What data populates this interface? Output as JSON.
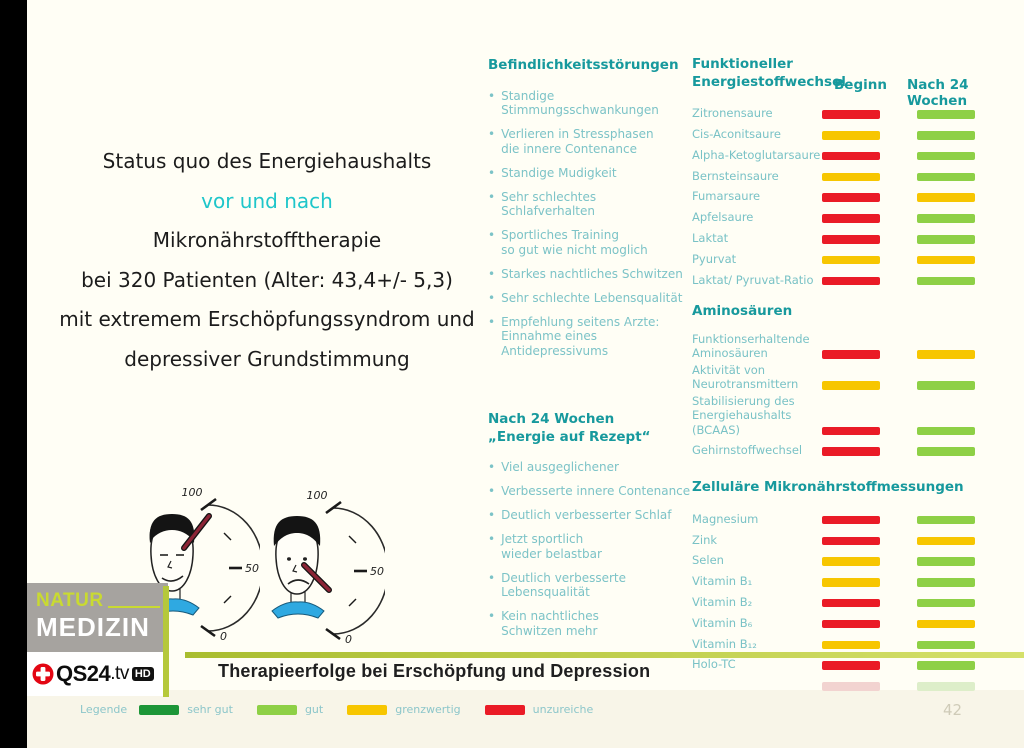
{
  "colors": {
    "red": "#ea1b26",
    "yellow": "#f7c600",
    "green": "#8ed046",
    "dark_green": "#1d9638",
    "faded_red": "#f2d3d0",
    "faded_green": "#ddeec9",
    "teal_heading": "#17999d",
    "teal_text": "#79c2c6",
    "cyan_accent": "#1fc6ca",
    "lime": "#b5c83b",
    "qs24_red": "#e30613"
  },
  "title": {
    "lines": [
      "Status quo des Energiehaushalts",
      "vor und nach",
      "Mikronährstofftherapie",
      "bei 320 Patienten (Alter: 43,4+/- 5,3)",
      "mit extremem Erschöpfungssyndrom und",
      "depressiver Grundstimmung"
    ]
  },
  "gauges": {
    "scale": [
      "100",
      "50",
      "0"
    ],
    "left_mood": "happy",
    "left_needle": "high",
    "right_mood": "sad",
    "right_needle": "low"
  },
  "symptoms": {
    "heading": "Befindlichkeitsstörungen",
    "items": [
      "Standige\nStimmungsschwankungen",
      "Verlieren in Stressphasen\ndie innere Contenance",
      "Standige Mudigkeit",
      "Sehr schlechtes\nSchlafverhalten",
      "Sportliches Training\nso gut wie nicht moglich",
      "Starkes nachtliches Schwitzen",
      "Sehr schlechte Lebensqualität",
      "Empfehlung seitens Arzte:\nEinnahme eines\nAntidepressivums"
    ]
  },
  "after": {
    "heading": "Nach 24 Wochen\n„Energie auf Rezept“",
    "items": [
      "Viel ausgeglichener",
      "Verbesserte innere Contenance",
      "Deutlich verbesserter Schlaf",
      "Jetzt sportlich\nwieder belastbar",
      "Deutlich verbesserte\nLebensqualität",
      "Kein nachtliches\nSchwitzen mehr"
    ]
  },
  "results": {
    "col_beginn": "Beginn",
    "col_nach": "Nach 24 Wochen",
    "sections": [
      {
        "heading": "Funktioneller\nEnergiestoffwechsel",
        "rows": [
          {
            "label": "Zitronensaure",
            "beginn": "red",
            "nach": "green"
          },
          {
            "label": "Cis-Aconitsaure",
            "beginn": "yellow",
            "nach": "green"
          },
          {
            "label": "Alpha-Ketoglutarsaure",
            "beginn": "red",
            "nach": "green"
          },
          {
            "label": "Bernsteinsaure",
            "beginn": "yellow",
            "nach": "green"
          },
          {
            "label": "Fumarsaure",
            "beginn": "red",
            "nach": "yellow"
          },
          {
            "label": "Apfelsaure",
            "beginn": "red",
            "nach": "green"
          },
          {
            "label": "Laktat",
            "beginn": "red",
            "nach": "green"
          },
          {
            "label": "Pyurvat",
            "beginn": "yellow",
            "nach": "yellow"
          },
          {
            "label": "Laktat/ Pyruvat-Ratio",
            "beginn": "red",
            "nach": "green"
          }
        ]
      },
      {
        "heading": "Aminosäuren",
        "rows": [
          {
            "label": "Funktionserhaltende\nAminosäuren",
            "beginn": "red",
            "nach": "yellow"
          },
          {
            "label": "Aktivität von\nNeurotransmittern",
            "beginn": "yellow",
            "nach": "green"
          },
          {
            "label": "Stabilisierung des\nEnergiehaushalts (BCAAS)",
            "beginn": "red",
            "nach": "green"
          },
          {
            "label": "Gehirnstoffwechsel",
            "beginn": "red",
            "nach": "green"
          }
        ]
      },
      {
        "heading": "Zelluläre Mikronährstoffmessungen",
        "rows": [
          {
            "label": "Magnesium",
            "beginn": "red",
            "nach": "green"
          },
          {
            "label": "Zink",
            "beginn": "red",
            "nach": "yellow"
          },
          {
            "label": "Selen",
            "beginn": "yellow",
            "nach": "green"
          },
          {
            "label": "Vitamin B₁",
            "beginn": "yellow",
            "nach": "green"
          },
          {
            "label": "Vitamin B₂",
            "beginn": "red",
            "nach": "green"
          },
          {
            "label": "Vitamin B₆",
            "beginn": "red",
            "nach": "yellow"
          },
          {
            "label": "Vitamin B₁₂",
            "beginn": "yellow",
            "nach": "green"
          },
          {
            "label": "Holo-TC",
            "beginn": "red",
            "nach": "green"
          },
          {
            "label": "",
            "beginn": "faded_red",
            "nach": "faded_green",
            "faded": true
          }
        ]
      }
    ]
  },
  "branding": {
    "natur": "NATUR",
    "medizin": "MEDIZIN",
    "qs24": "QS24",
    "tv": ".tv",
    "hd": "HD"
  },
  "caption": "Therapieerfolge bei Erschöpfung und Depression",
  "legend": {
    "label": "Legende",
    "items": [
      {
        "label": "sehr gut",
        "color": "dark_green"
      },
      {
        "label": "gut",
        "color": "green"
      },
      {
        "label": "grenzwertig",
        "color": "yellow"
      },
      {
        "label": "unzureiche",
        "color": "red"
      }
    ]
  },
  "page_number": "42",
  "chart_data": {
    "type": "table",
    "title": "Status quo des Energiehaushalts vor und nach Mikronährstofftherapie",
    "columns": [
      "Beginn",
      "Nach 24 Wochen"
    ],
    "legend": {
      "dark_green": "sehr gut",
      "green": "gut",
      "yellow": "grenzwertig",
      "red": "unzureiche"
    },
    "sections": [
      {
        "name": "Funktioneller Energiestoffwechsel",
        "rows": [
          [
            "Zitronensaure",
            "red",
            "green"
          ],
          [
            "Cis-Aconitsaure",
            "yellow",
            "green"
          ],
          [
            "Alpha-Ketoglutarsaure",
            "red",
            "green"
          ],
          [
            "Bernsteinsaure",
            "yellow",
            "green"
          ],
          [
            "Fumarsaure",
            "red",
            "yellow"
          ],
          [
            "Apfelsaure",
            "red",
            "green"
          ],
          [
            "Laktat",
            "red",
            "green"
          ],
          [
            "Pyurvat",
            "yellow",
            "yellow"
          ],
          [
            "Laktat/ Pyruvat-Ratio",
            "red",
            "green"
          ]
        ]
      },
      {
        "name": "Aminosäuren",
        "rows": [
          [
            "Funktionserhaltende Aminosäuren",
            "red",
            "yellow"
          ],
          [
            "Aktivität von Neurotransmittern",
            "yellow",
            "green"
          ],
          [
            "Stabilisierung des Energiehaushalts (BCAAS)",
            "red",
            "green"
          ],
          [
            "Gehirnstoffwechsel",
            "red",
            "green"
          ]
        ]
      },
      {
        "name": "Zelluläre Mikronährstoffmessungen",
        "rows": [
          [
            "Magnesium",
            "red",
            "green"
          ],
          [
            "Zink",
            "red",
            "yellow"
          ],
          [
            "Selen",
            "yellow",
            "green"
          ],
          [
            "Vitamin B₁",
            "yellow",
            "green"
          ],
          [
            "Vitamin B₂",
            "red",
            "green"
          ],
          [
            "Vitamin B₆",
            "red",
            "yellow"
          ],
          [
            "Vitamin B₁₂",
            "yellow",
            "green"
          ],
          [
            "Holo-TC",
            "red",
            "green"
          ]
        ]
      }
    ]
  }
}
